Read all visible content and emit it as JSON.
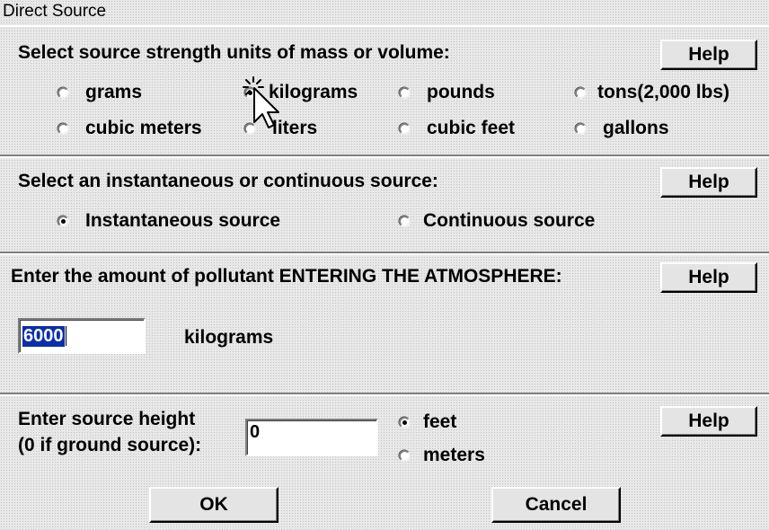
{
  "window": {
    "title": "Direct Source"
  },
  "units": {
    "prompt": "Select source strength units of mass or volume:",
    "help_label": "Help",
    "options": {
      "grams": "grams",
      "kilograms": "kilograms",
      "pounds": "pounds",
      "tons": "tons(2,000 lbs)",
      "cubic_meters": "cubic meters",
      "liters": "liters",
      "cubic_feet": "cubic feet",
      "gallons": "gallons"
    },
    "selected": "kilograms"
  },
  "source_type": {
    "prompt": "Select an instantaneous or continuous source:",
    "help_label": "Help",
    "options": {
      "instantaneous": "Instantaneous source",
      "continuous": "Continuous source"
    },
    "selected": "Instantaneous source"
  },
  "amount": {
    "prompt": "Enter the amount of pollutant ENTERING THE ATMOSPHERE:",
    "help_label": "Help",
    "value": "6000",
    "unit_label": "kilograms"
  },
  "height": {
    "prompt_line1": "Enter source height",
    "prompt_line2": "(0 if ground source):",
    "value": "0",
    "help_label": "Help",
    "options": {
      "feet": "feet",
      "meters": "meters"
    },
    "selected": "feet"
  },
  "footer": {
    "ok_label": "OK",
    "cancel_label": "Cancel"
  },
  "icons": {
    "pointer": "mouse-pointer-icon"
  }
}
